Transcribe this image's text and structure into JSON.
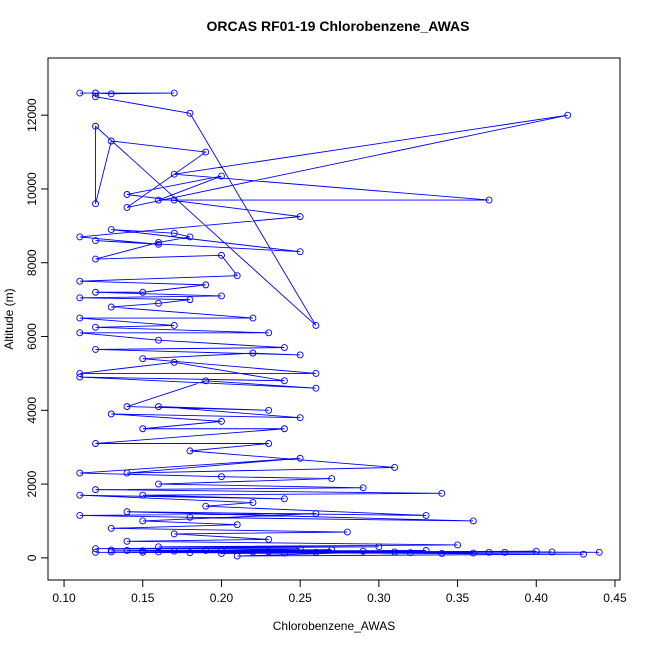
{
  "chart_data": {
    "type": "line",
    "title": "ORCAS RF01-19 Chlorobenzene_AWAS",
    "x_label": "Chlorobenzene_AWAS",
    "y_label": "Altitude (m)",
    "color": "#0000ff",
    "markers": true,
    "xlim": [
      0.0898,
      0.4532
    ],
    "ylim": [
      -600,
      13550
    ],
    "xticks": [
      {
        "value": 0.1,
        "label": "0.10"
      },
      0.15,
      {
        "value": 0.2,
        "label": "0.20"
      },
      0.25,
      {
        "value": 0.3,
        "label": "0.30"
      },
      0.35,
      {
        "value": 0.4,
        "label": "0.40"
      },
      0.45
    ],
    "yticks": [
      0,
      2000,
      4000,
      6000,
      8000,
      10000,
      12000
    ],
    "x": [
      0.11,
      0.12,
      0.13,
      0.17,
      0.12,
      0.12,
      0.18,
      0.26,
      0.12,
      0.12,
      0.13,
      0.19,
      0.14,
      0.42,
      0.17,
      0.37,
      0.17,
      0.16,
      0.2,
      0.14,
      0.25,
      0.11,
      0.16,
      0.12,
      0.25,
      0.13,
      0.17,
      0.18,
      0.16,
      0.12,
      0.2,
      0.21,
      0.11,
      0.19,
      0.15,
      0.12,
      0.2,
      0.11,
      0.18,
      0.16,
      0.13,
      0.22,
      0.11,
      0.17,
      0.12,
      0.23,
      0.11,
      0.16,
      0.24,
      0.12,
      0.25,
      0.22,
      0.15,
      0.26,
      0.11,
      0.17,
      0.24,
      0.11,
      0.26,
      0.19,
      0.14,
      0.23,
      0.16,
      0.25,
      0.13,
      0.2,
      0.15,
      0.24,
      0.12,
      0.23,
      0.18,
      0.31,
      0.14,
      0.25,
      0.11,
      0.2,
      0.27,
      0.16,
      0.29,
      0.12,
      0.34,
      0.15,
      0.24,
      0.11,
      0.22,
      0.19,
      0.33,
      0.14,
      0.36,
      0.18,
      0.11,
      0.26,
      0.15,
      0.21,
      0.13,
      0.28,
      0.17,
      0.23,
      0.14,
      0.35,
      0.16,
      0.3,
      0.12,
      0.25,
      0.19,
      0.44,
      0.15,
      0.4,
      0.2,
      0.37,
      0.13,
      0.43,
      0.21,
      0.33,
      0.17,
      0.27,
      0.14,
      0.38,
      0.22,
      0.32,
      0.12,
      0.24,
      0.18,
      0.36,
      0.26,
      0.16,
      0.41,
      0.23,
      0.29,
      0.15,
      0.34,
      0.2,
      0.31,
      0.13
    ],
    "values": [
      12600,
      12600,
      12580,
      12600,
      12600,
      12500,
      12050,
      6300,
      11700,
      9600,
      11300,
      11000,
      9500,
      12000,
      10400,
      9700,
      9700,
      9700,
      10350,
      9850,
      9250,
      8700,
      8500,
      8600,
      8300,
      8900,
      8800,
      8700,
      8550,
      8100,
      8200,
      7650,
      7500,
      7400,
      7200,
      7200,
      7100,
      7050,
      7000,
      6900,
      6800,
      6500,
      6500,
      6300,
      6250,
      6100,
      6100,
      5900,
      5700,
      5650,
      5500,
      5550,
      5400,
      5000,
      5000,
      5300,
      4800,
      4900,
      4600,
      4800,
      4100,
      4000,
      4100,
      3800,
      3900,
      3700,
      3500,
      3500,
      3100,
      3100,
      2900,
      2450,
      2300,
      2700,
      2300,
      2200,
      2150,
      2000,
      1900,
      1850,
      1750,
      1700,
      1600,
      1700,
      1500,
      1400,
      1150,
      1250,
      1000,
      1100,
      1150,
      1200,
      1000,
      900,
      800,
      700,
      650,
      500,
      450,
      350,
      300,
      300,
      250,
      250,
      200,
      150,
      150,
      180,
      120,
      150,
      160,
      100,
      50,
      200,
      180,
      220,
      200,
      150,
      160,
      140,
      150,
      130,
      140,
      130,
      150,
      160,
      160,
      170,
      180,
      190,
      120,
      200,
      160,
      210
    ]
  }
}
